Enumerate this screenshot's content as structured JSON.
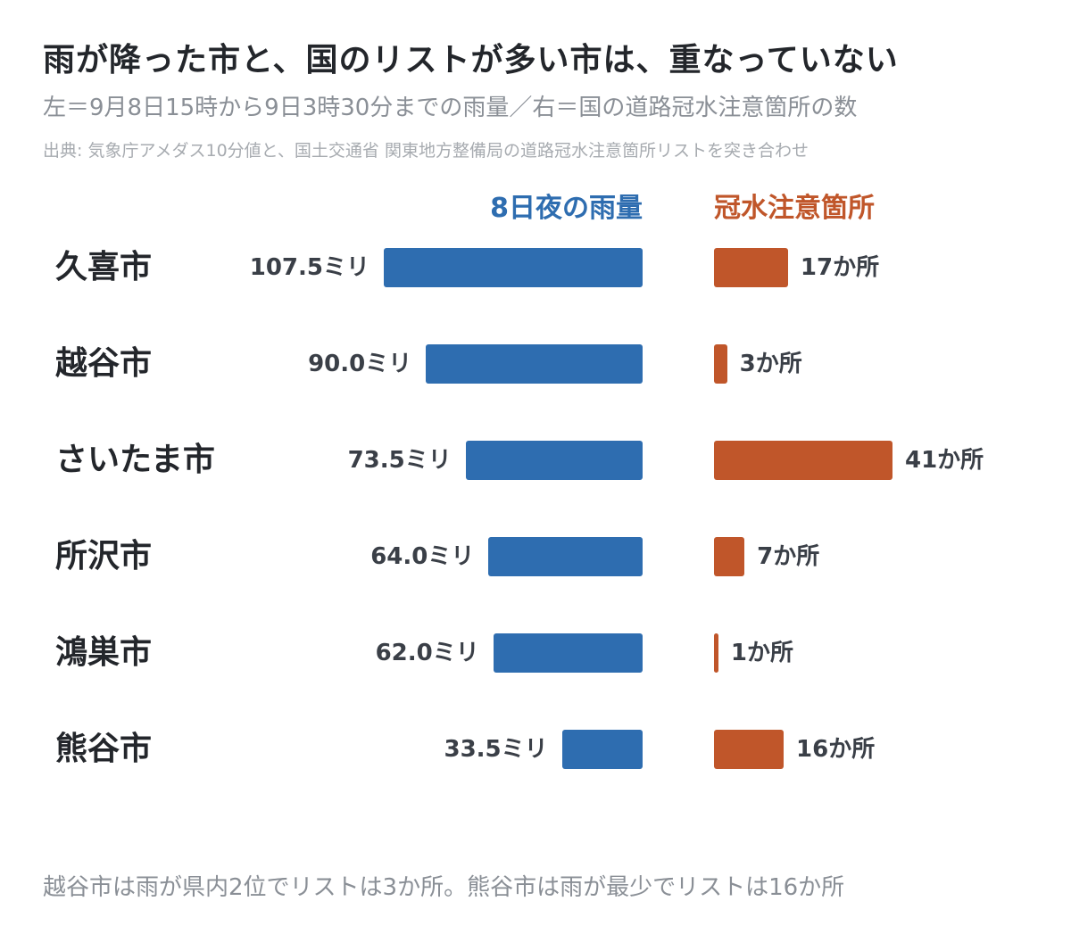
{
  "title": "雨が降った市と、国のリストが多い市は、重なっていない",
  "subtitle": "左＝9月8日15時から9日3時30分までの雨量／右＝国の道路冠水注意箇所の数",
  "source": "出典: 気象庁アメダス10分値と、国土交通省 関東地方整備局の道路冠水注意箇所リストを突き合わせ",
  "footnote": "越谷市は雨が県内2位でリストは3か所。熊谷市は雨が最少でリストは16か所",
  "colors": {
    "rain": "#2e6db0",
    "flood": "#c0562a"
  },
  "chart_data": {
    "type": "bar",
    "categories": [
      "久喜市",
      "越谷市",
      "さいたま市",
      "所沢市",
      "鴻巣市",
      "熊谷市"
    ],
    "series": [
      {
        "name": "8日夜の雨量",
        "values": [
          107.5,
          90.0,
          73.5,
          64.0,
          62.0,
          33.5
        ],
        "labels": [
          "107.5ミリ",
          "90.0ミリ",
          "73.5ミリ",
          "64.0ミリ",
          "62.0ミリ",
          "33.5ミリ"
        ],
        "direction": "left"
      },
      {
        "name": "冠水注意箇所",
        "values": [
          17,
          3,
          41,
          7,
          1,
          16
        ],
        "labels": [
          "17か所",
          "3か所",
          "41か所",
          "7か所",
          "1か所",
          "16か所"
        ],
        "direction": "right"
      }
    ]
  }
}
